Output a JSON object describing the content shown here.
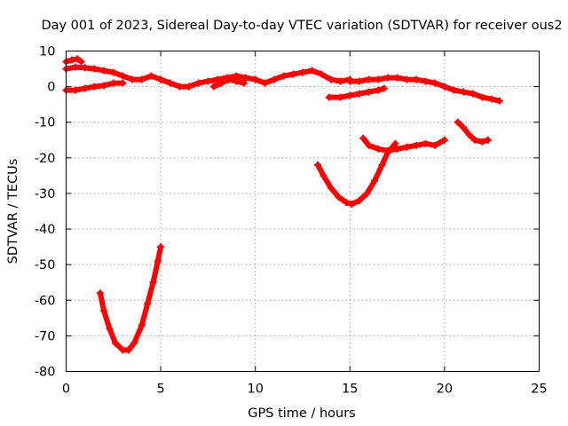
{
  "chart_data": {
    "type": "scatter",
    "title": "Day 001 of 2023, Sidereal Day-to-day VTEC variation (SDTVAR) for receiver ous2",
    "xlabel": "GPS time / hours",
    "ylabel": "SDTVAR / TECUs",
    "xlim": [
      0,
      25
    ],
    "ylim": [
      -80,
      10
    ],
    "xticks": [
      0,
      5,
      10,
      15,
      20,
      25
    ],
    "yticks": [
      -80,
      -70,
      -60,
      -50,
      -40,
      -30,
      -20,
      -10,
      0,
      10
    ],
    "grid": true,
    "legend": "none",
    "series_color": "#ff0000",
    "series": [
      {
        "name": "track-upper",
        "x": [
          0.0,
          0.5,
          1.0,
          1.5,
          2.0,
          2.5,
          3.0,
          3.5,
          4.0,
          4.5,
          5.0,
          5.5,
          6.0,
          6.5
        ],
        "y": [
          5,
          5.5,
          5.3,
          5,
          4.5,
          4,
          3,
          2,
          2,
          3,
          2,
          1,
          0,
          0
        ]
      },
      {
        "name": "track-upper-short",
        "x": [
          0.0,
          0.3,
          0.6,
          0.8
        ],
        "y": [
          7,
          7.5,
          7.8,
          7
        ]
      },
      {
        "name": "track-lower",
        "x": [
          0.0,
          0.5,
          1.0,
          1.5,
          2.0,
          2.5,
          3.0
        ],
        "y": [
          -1,
          -1,
          -0.5,
          0,
          0.3,
          1,
          1
        ]
      },
      {
        "name": "track-dip-1",
        "x": [
          1.8,
          2.0,
          2.3,
          2.6,
          3.0,
          3.3,
          3.6,
          4.0,
          4.3,
          4.6,
          4.85,
          5.0
        ],
        "y": [
          -58,
          -63,
          -68,
          -72,
          -74,
          -74,
          -72,
          -67,
          -61,
          -55,
          -49,
          -45
        ]
      },
      {
        "name": "track-mid",
        "x": [
          6.5,
          7.0,
          7.5,
          8.0,
          8.5,
          9.0,
          9.5,
          10.0,
          10.5,
          11.0,
          11.5,
          12.0,
          12.5,
          13.0,
          13.5,
          14.0,
          14.5,
          15.0
        ],
        "y": [
          0,
          1,
          1.5,
          2,
          2.5,
          3,
          2.5,
          2,
          1,
          2,
          3,
          3.5,
          4,
          4.5,
          3.5,
          2,
          1.5,
          2
        ]
      },
      {
        "name": "track-mid-2",
        "x": [
          7.8,
          8.2,
          8.6,
          9.0,
          9.4
        ],
        "y": [
          0,
          1,
          2,
          1.5,
          1
        ]
      },
      {
        "name": "track-late",
        "x": [
          15.0,
          15.5,
          16.0,
          16.5,
          17.0,
          17.5,
          18.0,
          18.5,
          19.0,
          19.5,
          20.0,
          20.5,
          21.0,
          21.5,
          22.0,
          22.5,
          22.9
        ],
        "y": [
          1.5,
          1.5,
          2,
          2,
          2.5,
          2.5,
          2,
          2,
          1.5,
          1,
          0,
          -1,
          -1.5,
          -2,
          -3,
          -3.5,
          -4
        ]
      },
      {
        "name": "track-drop",
        "x": [
          13.9,
          14.5,
          15.0,
          15.5,
          16.0,
          16.5,
          16.8
        ],
        "y": [
          -3,
          -3,
          -2.5,
          -2,
          -1.5,
          -1,
          -0.5
        ]
      },
      {
        "name": "track-dip-2",
        "x": [
          13.3,
          13.6,
          14.0,
          14.4,
          14.8,
          15.1,
          15.5,
          15.9,
          16.3,
          16.7,
          17.0,
          17.4
        ],
        "y": [
          -22,
          -25,
          -28.5,
          -31,
          -32.5,
          -33,
          -32,
          -30,
          -26.5,
          -22,
          -18.5,
          -16
        ]
      },
      {
        "name": "track-late-low",
        "x": [
          15.7,
          16.0,
          16.5,
          17.0,
          17.5,
          18.0,
          18.5,
          19.0,
          19.5,
          20.0
        ],
        "y": [
          -14.5,
          -16.5,
          -17.5,
          -18,
          -17.5,
          -17,
          -16.5,
          -16,
          -16.5,
          -15
        ]
      },
      {
        "name": "track-end-low",
        "x": [
          20.7,
          21.0,
          21.3,
          21.6,
          22.0,
          22.3
        ],
        "y": [
          -10,
          -11.5,
          -13.5,
          -15,
          -15.5,
          -15
        ]
      }
    ]
  }
}
